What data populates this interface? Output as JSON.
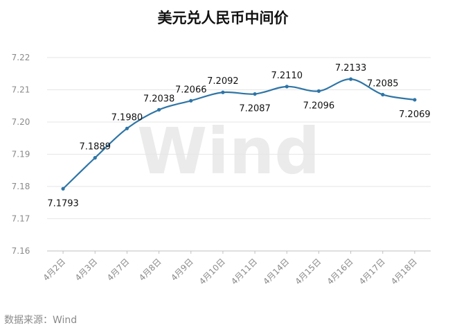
{
  "chart_data": {
    "type": "line",
    "title": "美元兑人民币中间价",
    "categories": [
      "4月2日",
      "4月3日",
      "4月7日",
      "4月8日",
      "4月9日",
      "4月10日",
      "4月11日",
      "4月14日",
      "4月15日",
      "4月16日",
      "4月17日",
      "4月18日"
    ],
    "values": [
      7.1793,
      7.1889,
      7.198,
      7.2038,
      7.2066,
      7.2092,
      7.2087,
      7.211,
      7.2096,
      7.2133,
      7.2085,
      7.2069
    ],
    "data_labels": [
      "7.1793",
      "7.1889",
      "7.1980",
      "7.2038",
      "7.2066",
      "7.2092",
      "7.2087",
      "7.2110",
      "7.2096",
      "7.2133",
      "7.2085",
      "7.2069"
    ],
    "ylim": [
      7.16,
      7.22
    ],
    "yticks": [
      7.16,
      7.17,
      7.18,
      7.19,
      7.2,
      7.21,
      7.22
    ],
    "ytick_labels": [
      "7.16",
      "7.17",
      "7.18",
      "7.19",
      "7.20",
      "7.21",
      "7.22"
    ],
    "xlabel": "",
    "ylabel": "",
    "grid": true,
    "line_color": "#2e75a6",
    "smooth": true
  },
  "source": "数据来源：Wind",
  "watermark": "Wind"
}
